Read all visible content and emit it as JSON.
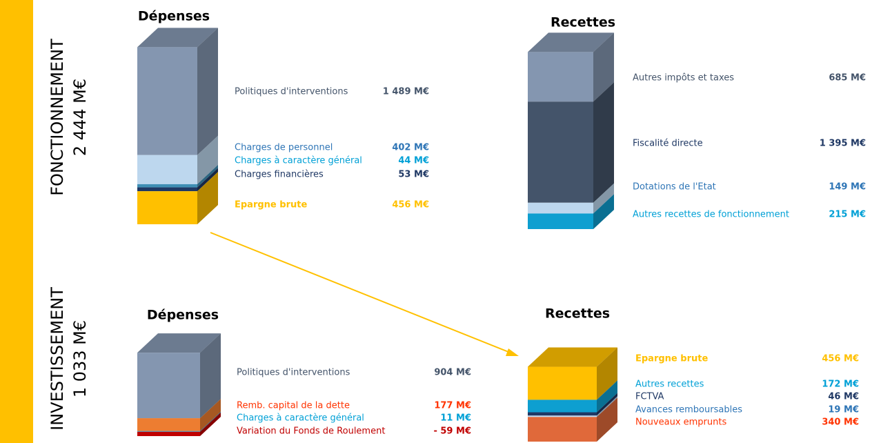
{
  "sections": [
    {
      "title": "FONCTIONNEMENT",
      "total": "2 444 M€",
      "blocks": [
        {
          "title": "Dépenses",
          "items": [
            {
              "label": "Politiques d'interventions",
              "value": 1489,
              "value_label": "1 489 M€",
              "color": "#8496b0",
              "text_color": "#44546a"
            },
            {
              "label": "Charges de personnel",
              "value": 402,
              "value_label": "402 M€",
              "color": "#bdd7ee",
              "text_color": "#2e75b6"
            },
            {
              "label": "Charges à caractère général",
              "value": 44,
              "value_label": "44 M€",
              "color": "#3f8fb5",
              "text_color": "#00a0d6"
            },
            {
              "label": "Charges financières",
              "value": 53,
              "value_label": "53 M€",
              "color": "#1f3864",
              "text_color": "#1f3864"
            },
            {
              "label": "Epargne brute",
              "value": 456,
              "value_label": "456 M€",
              "color": "#ffc000",
              "text_color": "#ffc000",
              "bold_label": true
            }
          ]
        },
        {
          "title": "Recettes",
          "items": [
            {
              "label": "Autres impôts et taxes",
              "value": 685,
              "value_label": "685 M€",
              "color": "#8496b0",
              "text_color": "#44546a"
            },
            {
              "label": "Fiscalité directe",
              "value": 1395,
              "value_label": "1 395 M€",
              "color": "#44546a",
              "text_color": "#1f3864"
            },
            {
              "label": "Dotations de l'Etat",
              "value": 149,
              "value_label": "149 M€",
              "color": "#bdd7ee",
              "text_color": "#2e75b6"
            },
            {
              "label": "Autres recettes de fonctionnement",
              "value": 215,
              "value_label": "215 M€",
              "color": "#0e9fd0",
              "text_color": "#00a0d6"
            }
          ]
        }
      ]
    },
    {
      "title": "INVESTISSEMENT",
      "total": "1 033 M€",
      "blocks": [
        {
          "title": "Dépenses",
          "items": [
            {
              "label": "Politiques d'interventions",
              "value": 904,
              "value_label": "904 M€",
              "color": "#8496b0",
              "text_color": "#44546a"
            },
            {
              "label": "Remb. capital de la dette",
              "value": 177,
              "value_label": "177 M€",
              "color": "#ed7d31",
              "text_color": "#ff3300"
            },
            {
              "label": "Charges à caractère général",
              "value": 11,
              "value_label": "11 M€",
              "color": "#3f8fb5",
              "text_color": "#00a0d6"
            },
            {
              "label": "Variation du Fonds de Roulement",
              "value": -59,
              "value_label": "- 59 M€",
              "color": "#c00000",
              "text_color": "#c00000"
            }
          ]
        },
        {
          "title": "Recettes",
          "items": [
            {
              "label": "Epargne brute",
              "value": 456,
              "value_label": "456 M€",
              "color": "#ffc000",
              "text_color": "#ffc000",
              "bold_label": true
            },
            {
              "label": "Autres recettes",
              "value": 172,
              "value_label": "172 M€",
              "color": "#0e9fd0",
              "text_color": "#00a0d6"
            },
            {
              "label": "FCTVA",
              "value": 46,
              "value_label": "46 M€",
              "color": "#1f3864",
              "text_color": "#1f3864"
            },
            {
              "label": "Avances remboursables",
              "value": 19,
              "value_label": "19 M€",
              "color": "#bdd7ee",
              "text_color": "#2e75b6"
            },
            {
              "label": "Nouveaux emprunts",
              "value": 340,
              "value_label": "340 M€",
              "color": "#e0693a",
              "text_color": "#ff3300"
            }
          ]
        }
      ]
    }
  ]
}
